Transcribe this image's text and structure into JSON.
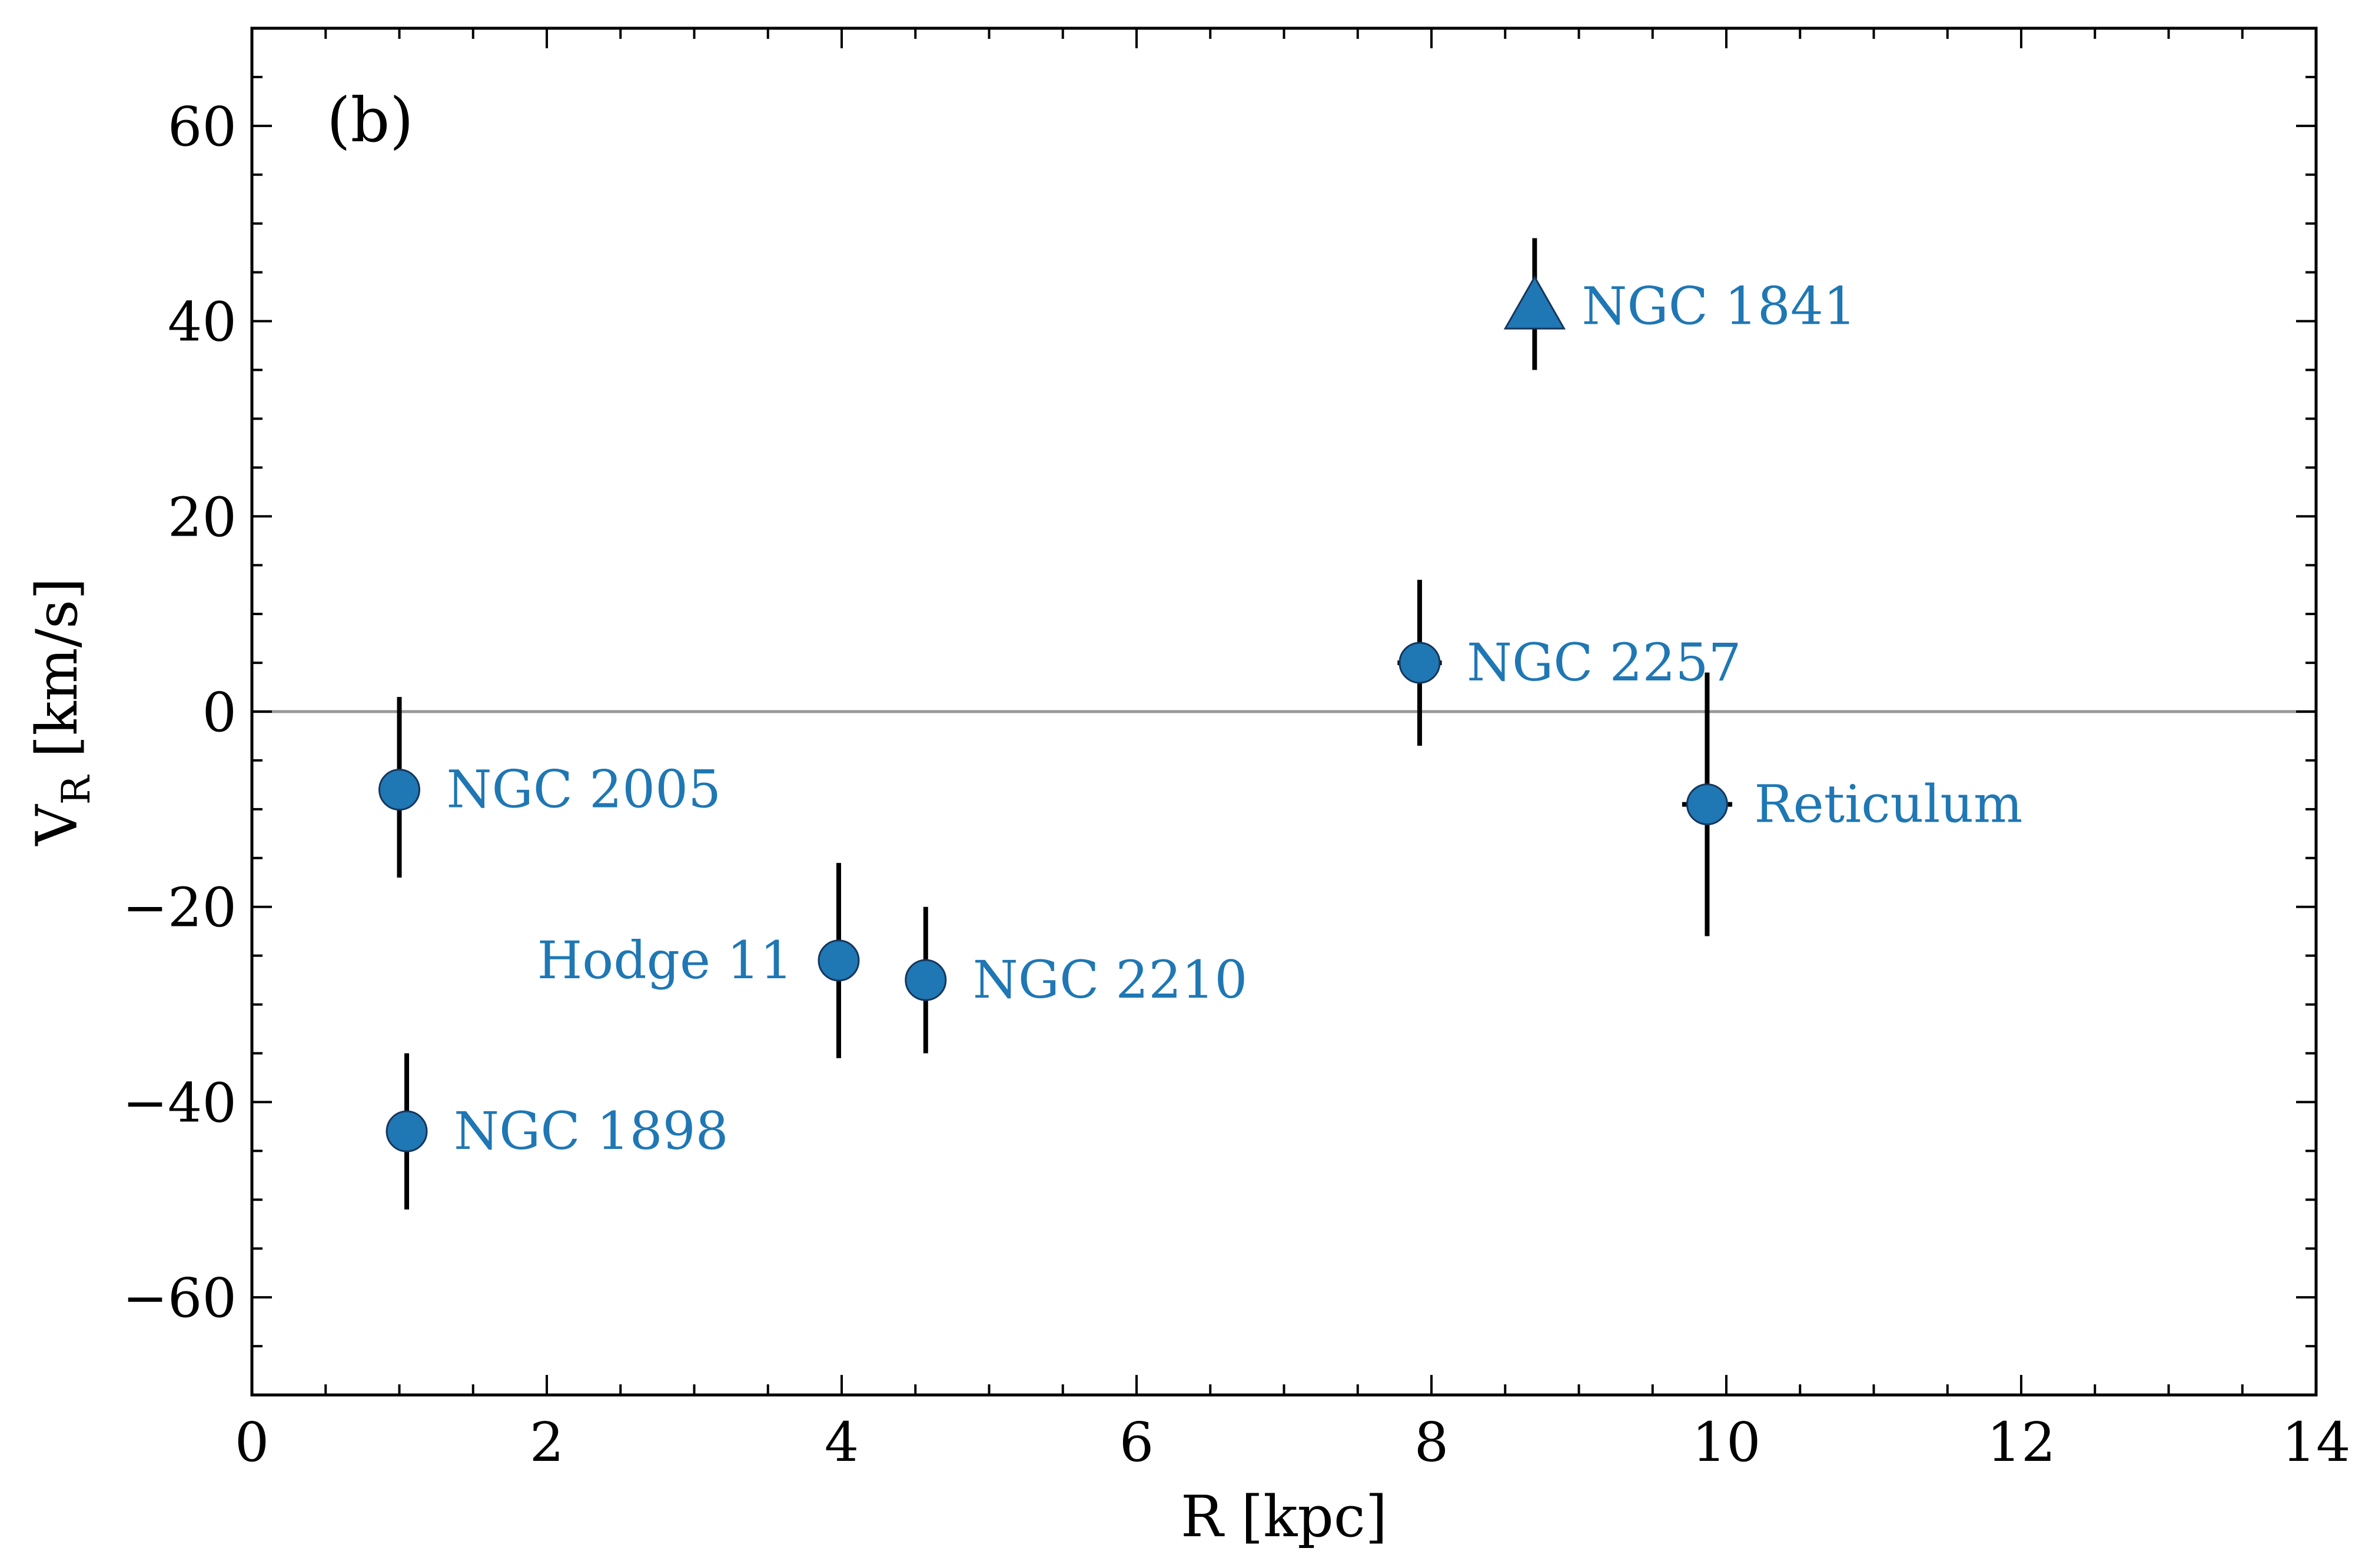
{
  "chart_data": {
    "type": "scatter",
    "panel_label": "(b)",
    "xlabel": "R [kpc]",
    "ylabel": "V",
    "ylabel_subscript": "R",
    "ylabel_unit": " [km/s]",
    "xlim": [
      0,
      14
    ],
    "ylim": [
      -70,
      70
    ],
    "x_major_ticks": [
      0,
      2,
      4,
      6,
      8,
      10,
      12,
      14
    ],
    "x_minor_ticks": [
      0.5,
      1,
      1.5,
      2.5,
      3,
      3.5,
      4.5,
      5,
      5.5,
      6.5,
      7,
      7.5,
      8.5,
      9,
      9.5,
      10.5,
      11,
      11.5,
      12.5,
      13,
      13.5
    ],
    "y_major_ticks": [
      -60,
      -40,
      -20,
      0,
      20,
      40,
      60
    ],
    "y_minor_ticks": [
      -65,
      -55,
      -50,
      -45,
      -35,
      -30,
      -25,
      -15,
      -10,
      -5,
      5,
      10,
      15,
      25,
      30,
      35,
      45,
      50,
      55,
      65
    ],
    "x_tick_labels": [
      "0",
      "2",
      "4",
      "6",
      "8",
      "10",
      "12",
      "14"
    ],
    "y_tick_labels": [
      "−60",
      "−40",
      "−20",
      "0",
      "20",
      "40",
      "60"
    ],
    "zero_line": 0,
    "marker_color": "#1f77b4",
    "points": [
      {
        "name": "NGC 2005",
        "x": 1.0,
        "y": -8,
        "yerr": [
          9,
          9.5
        ],
        "xerr": 0,
        "marker": "circle",
        "label_side": "right"
      },
      {
        "name": "NGC 1898",
        "x": 1.05,
        "y": -43,
        "yerr": [
          8,
          8
        ],
        "xerr": 0,
        "marker": "circle",
        "label_side": "right"
      },
      {
        "name": "Hodge 11",
        "x": 3.98,
        "y": -25.5,
        "yerr": [
          10,
          10
        ],
        "xerr": 0,
        "marker": "circle",
        "label_side": "left"
      },
      {
        "name": "NGC 2210",
        "x": 4.57,
        "y": -27.5,
        "yerr": [
          7.5,
          7.5
        ],
        "xerr": 0,
        "marker": "circle",
        "label_side": "right"
      },
      {
        "name": "NGC 2257",
        "x": 7.92,
        "y": 5,
        "yerr": [
          8.5,
          8.5
        ],
        "xerr": 0.15,
        "marker": "circle",
        "label_side": "right"
      },
      {
        "name": "Reticulum",
        "x": 9.87,
        "y": -9.5,
        "yerr": [
          13.5,
          13.5
        ],
        "xerr": 0.17,
        "marker": "circle",
        "label_side": "right"
      },
      {
        "name": "NGC 1841",
        "x": 8.7,
        "y": 41.5,
        "yerr": [
          6.5,
          7
        ],
        "xerr": 0,
        "marker": "triangle",
        "label_side": "right"
      }
    ]
  }
}
